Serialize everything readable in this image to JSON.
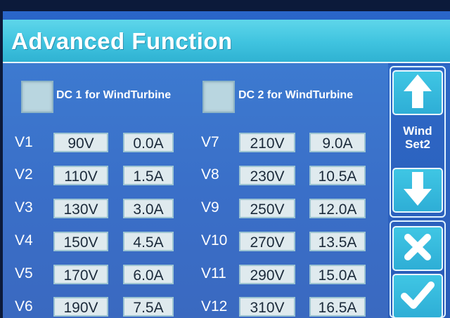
{
  "title": "Advanced Function",
  "checkboxes": [
    {
      "label": "DC 1 for WindTurbine"
    },
    {
      "label": "DC 2 for WindTurbine"
    }
  ],
  "left_rows": [
    {
      "label": "V1",
      "voltage": "90V",
      "current": "0.0A"
    },
    {
      "label": "V2",
      "voltage": "110V",
      "current": "1.5A"
    },
    {
      "label": "V3",
      "voltage": "130V",
      "current": "3.0A"
    },
    {
      "label": "V4",
      "voltage": "150V",
      "current": "4.5A"
    },
    {
      "label": "V5",
      "voltage": "170V",
      "current": "6.0A"
    },
    {
      "label": "V6",
      "voltage": "190V",
      "current": "7.5A"
    }
  ],
  "right_rows": [
    {
      "label": "V7",
      "voltage": "210V",
      "current": "9.0A"
    },
    {
      "label": "V8",
      "voltage": "230V",
      "current": "10.5A"
    },
    {
      "label": "V9",
      "voltage": "250V",
      "current": "12.0A"
    },
    {
      "label": "V10",
      "voltage": "270V",
      "current": "13.5A"
    },
    {
      "label": "V11",
      "voltage": "290V",
      "current": "15.0A"
    },
    {
      "label": "V12",
      "voltage": "310V",
      "current": "16.5A"
    }
  ],
  "sidebar": {
    "set_line1": "Wind",
    "set_line2": "Set2"
  },
  "colors": {
    "titlebar": "#3fc3df",
    "panel": "#3a6fc8",
    "button": "#2eaed6"
  },
  "icons": [
    "arrow-up-icon",
    "arrow-down-icon",
    "close-icon",
    "check-icon"
  ]
}
